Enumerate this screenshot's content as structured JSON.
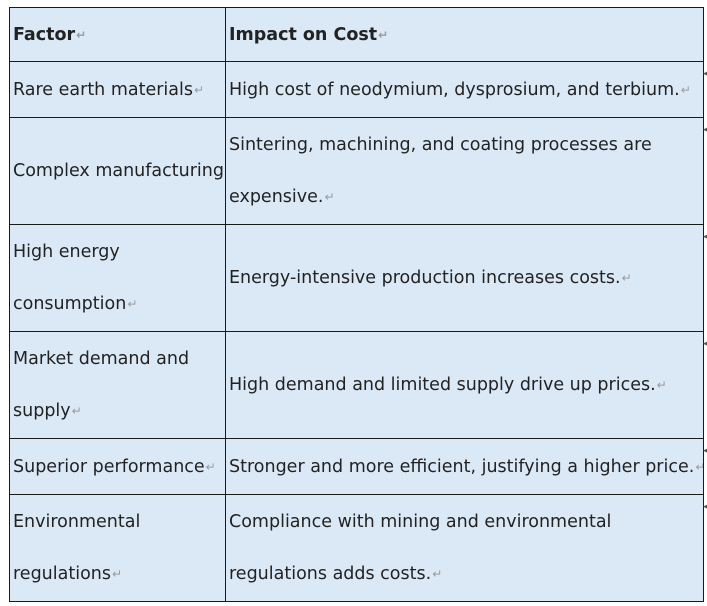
{
  "headers": [
    "Factor",
    "Impact on Cost"
  ],
  "rows": [
    {
      "factor": "Rare earth materials",
      "impact": "High cost of neodymium, dysprosium, and terbium."
    },
    {
      "factor": "Complex manufacturing",
      "impact": "Sintering, machining, and coating processes are expensive."
    },
    {
      "factor": "High energy consumption",
      "impact": "Energy-intensive production increases costs."
    },
    {
      "factor": "Market demand and supply",
      "impact": "High demand and limited supply drive up prices."
    },
    {
      "factor": "Superior performance",
      "impact": "Stronger and more efficient, justifying a higher price."
    },
    {
      "factor": "Environmental regulations",
      "impact": "Compliance with mining and environmental regulations adds costs."
    }
  ],
  "paragraph_mark": "↵",
  "edge_mark": "◂"
}
